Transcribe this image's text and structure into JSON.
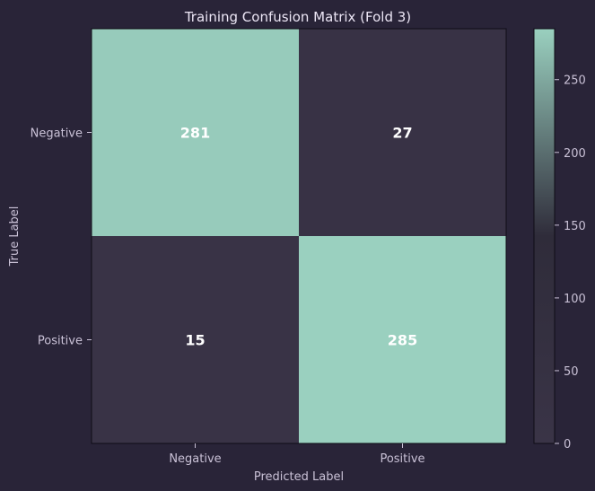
{
  "chart_data": {
    "type": "heatmap",
    "title": "Training Confusion Matrix (Fold 3)",
    "xlabel": "Predicted Label",
    "ylabel": "True Label",
    "x_categories": [
      "Negative",
      "Positive"
    ],
    "y_categories": [
      "Negative",
      "Positive"
    ],
    "values": [
      [
        281,
        27
      ],
      [
        15,
        285
      ]
    ],
    "colorbar": {
      "ticks": [
        0,
        50,
        100,
        150,
        200,
        250
      ],
      "range": [
        0,
        285
      ]
    },
    "colors": {
      "background": "#292438",
      "low": "#3a3447",
      "mid": "#2f2c3a",
      "high": "#9ad0bf",
      "text": "#c9c1d6",
      "title": "#ece6f5",
      "cell_text": "#ffffff",
      "frame": "#0f0d16"
    }
  }
}
